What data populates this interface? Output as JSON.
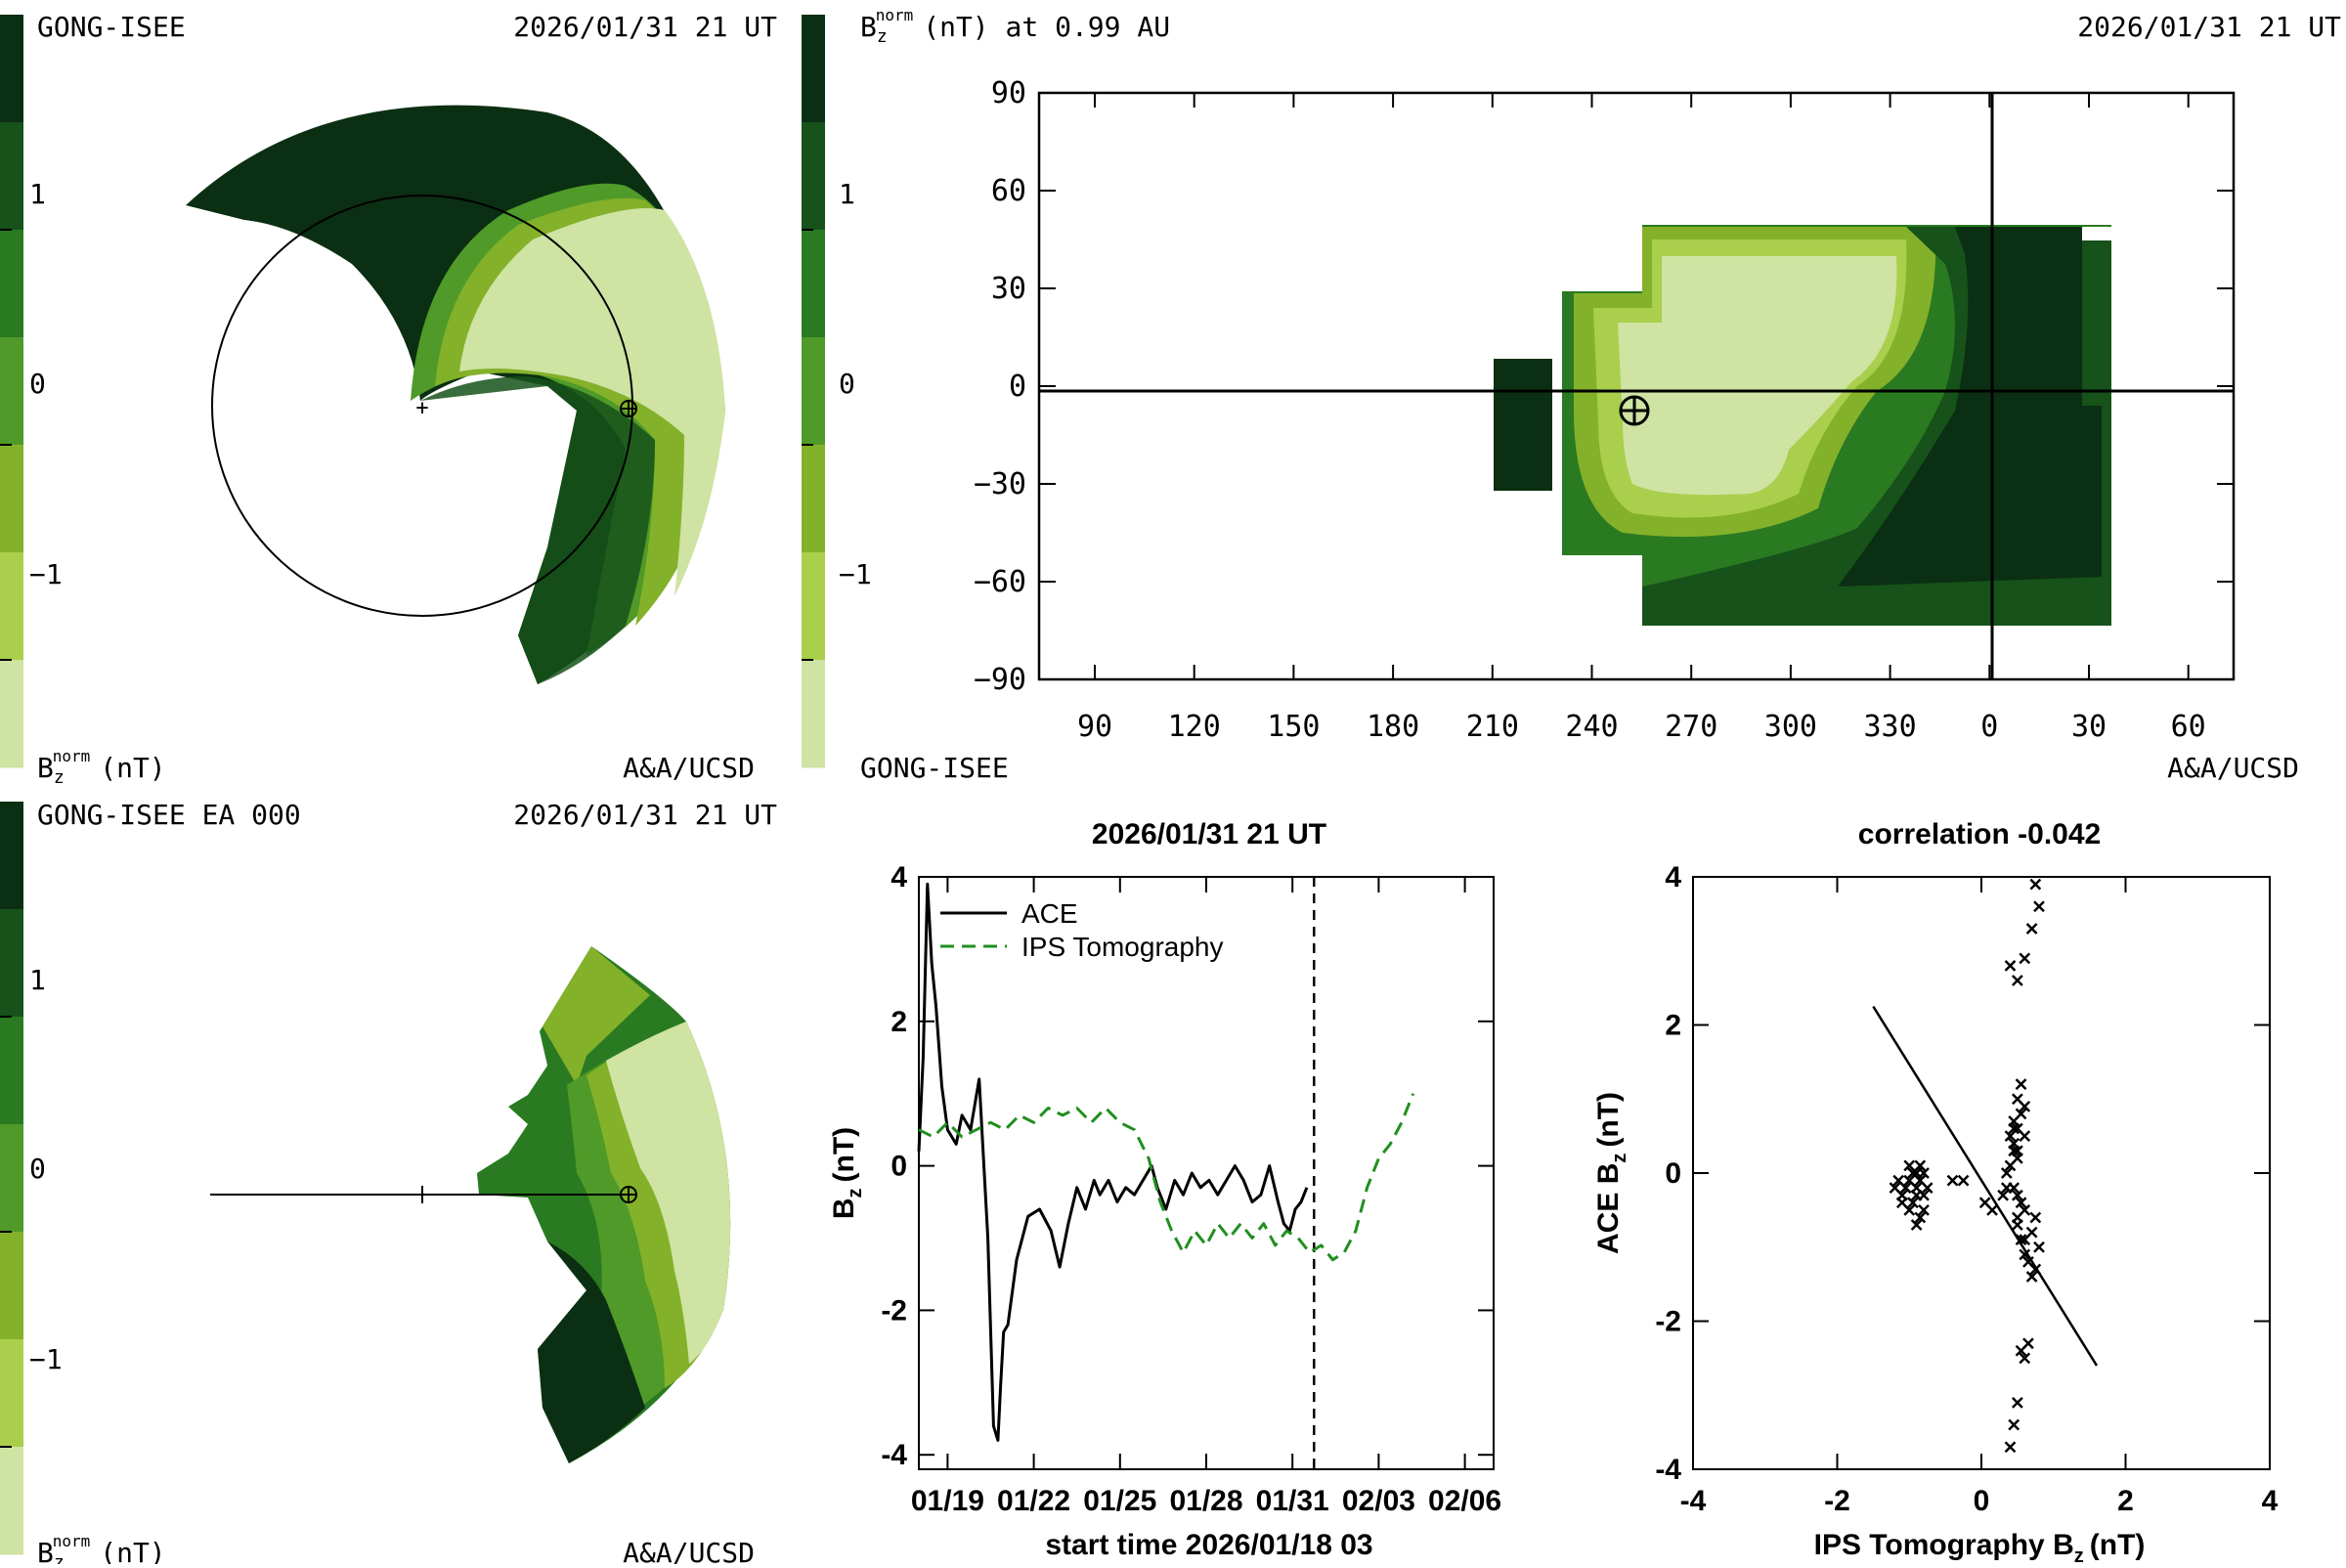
{
  "colors": {
    "scale": [
      "#cfe3a3",
      "#a9cf4c",
      "#84b12a",
      "#4f9a28",
      "#2a7a22",
      "#16521a",
      "#0b2f12"
    ],
    "ace": "#000000",
    "ips": "#1f8f1f"
  },
  "panel_tl": {
    "label_left": "GONG-ISEE",
    "label_right": "2026/01/31 21 UT",
    "footer_left_base": "B",
    "footer_left_sub": "z",
    "footer_left_sup": "norm",
    "footer_left_unit": "(nT)",
    "footer_right": "A&A/UCSD",
    "colorbar_ticks": [
      "1",
      "0",
      "−1"
    ]
  },
  "panel_bl": {
    "label_left": "GONG-ISEE EA 000",
    "label_right": "2026/01/31 21 UT",
    "footer_left_base": "B",
    "footer_left_sub": "z",
    "footer_left_sup": "norm",
    "footer_left_unit": "(nT)",
    "footer_right": "A&A/UCSD",
    "colorbar_ticks": [
      "1",
      "0",
      "−1"
    ]
  },
  "panel_map": {
    "title_base": "B",
    "title_sub": "z",
    "title_sup": "norm",
    "title_rest": "(nT) at 0.99 AU",
    "date": "2026/01/31 21 UT",
    "footer_left": "GONG-ISEE",
    "footer_right": "A&A/UCSD",
    "colorbar_ticks": [
      "1",
      "0",
      "−1"
    ]
  },
  "chart_data": [
    {
      "type": "line",
      "title": "2026/01/31 21 UT",
      "xlabel": "start time 2026/01/18 03",
      "ylabel_base": "B",
      "ylabel_sub": "z",
      "ylabel_unit": "(nT)",
      "xlim": [
        0,
        20
      ],
      "ylim": [
        -4.2,
        4
      ],
      "x_ticks": [
        1,
        4,
        7,
        10,
        13,
        16,
        19
      ],
      "x_tick_labels": [
        "01/19",
        "01/22",
        "01/25",
        "01/28",
        "01/31",
        "02/03",
        "02/06"
      ],
      "y_ticks": [
        4,
        2,
        0,
        -2,
        -4
      ],
      "y_tick_labels": [
        "4",
        "2",
        "0",
        "-2",
        "-4"
      ],
      "now_marker_x": 13.75,
      "series": [
        {
          "name": "ACE",
          "style": "solid",
          "x": [
            0,
            0.15,
            0.3,
            0.45,
            0.6,
            0.8,
            1.0,
            1.3,
            1.5,
            1.8,
            2.1,
            2.4,
            2.6,
            2.75,
            2.85,
            2.95,
            3.1,
            3.4,
            3.8,
            4.2,
            4.6,
            4.9,
            5.2,
            5.5,
            5.8,
            6.1,
            6.3,
            6.6,
            6.9,
            7.2,
            7.5,
            7.8,
            8.1,
            8.3,
            8.6,
            8.9,
            9.2,
            9.5,
            9.8,
            10.1,
            10.4,
            10.7,
            11.0,
            11.3,
            11.6,
            11.9,
            12.2,
            12.5,
            12.7,
            12.9,
            13.1,
            13.3,
            13.5
          ],
          "y": [
            0.2,
            1.5,
            3.9,
            2.8,
            2.2,
            1.1,
            0.5,
            0.3,
            0.7,
            0.5,
            1.2,
            -1.0,
            -3.6,
            -3.8,
            -3.0,
            -2.3,
            -2.2,
            -1.3,
            -0.7,
            -0.6,
            -0.9,
            -1.4,
            -0.8,
            -0.3,
            -0.6,
            -0.2,
            -0.4,
            -0.2,
            -0.5,
            -0.3,
            -0.4,
            -0.2,
            0.0,
            -0.3,
            -0.6,
            -0.2,
            -0.4,
            -0.1,
            -0.3,
            -0.2,
            -0.4,
            -0.2,
            0.0,
            -0.2,
            -0.5,
            -0.4,
            0.0,
            -0.5,
            -0.8,
            -0.9,
            -0.6,
            -0.5,
            -0.3
          ]
        },
        {
          "name": "IPS Tomography",
          "style": "dashed",
          "x": [
            0,
            0.5,
            1.0,
            1.5,
            2.0,
            2.5,
            3.0,
            3.5,
            4.0,
            4.5,
            5.0,
            5.5,
            6.0,
            6.5,
            7.0,
            7.5,
            8.0,
            8.4,
            8.8,
            9.2,
            9.6,
            10.0,
            10.4,
            10.8,
            11.2,
            11.6,
            12.0,
            12.4,
            12.8,
            13.2,
            13.6,
            14.0,
            14.4,
            14.8,
            15.2,
            15.6,
            16.0,
            16.4,
            16.8,
            17.2
          ],
          "y": [
            0.5,
            0.4,
            0.6,
            0.4,
            0.5,
            0.6,
            0.5,
            0.7,
            0.6,
            0.8,
            0.7,
            0.8,
            0.6,
            0.8,
            0.6,
            0.5,
            0.1,
            -0.5,
            -0.9,
            -1.2,
            -0.9,
            -1.1,
            -0.8,
            -1.0,
            -0.8,
            -1.0,
            -0.8,
            -1.1,
            -0.9,
            -1.0,
            -1.2,
            -1.1,
            -1.3,
            -1.2,
            -0.9,
            -0.3,
            0.1,
            0.3,
            0.6,
            1.0
          ]
        }
      ]
    },
    {
      "type": "scatter",
      "title": "correlation -0.042",
      "xlabel_base": "IPS Tomography B",
      "xlabel_sub": "z",
      "xlabel_unit": "(nT)",
      "ylabel_base": "ACE B",
      "ylabel_sub": "z",
      "ylabel_unit": "(nT)",
      "xlim": [
        -4,
        4
      ],
      "ylim": [
        -4,
        4
      ],
      "x_ticks": [
        -4,
        -2,
        0,
        2,
        4
      ],
      "x_tick_labels": [
        "-4",
        "-2",
        "0",
        "2",
        "4"
      ],
      "y_ticks": [
        4,
        2,
        0,
        -2,
        -4
      ],
      "y_tick_labels": [
        "4",
        "2",
        "0",
        "-2",
        "-4"
      ],
      "fit_line": {
        "x": [
          -1.5,
          1.6
        ],
        "y": [
          2.25,
          -2.6
        ]
      },
      "points": {
        "x": [
          -1.2,
          -1.15,
          -1.1,
          -1.05,
          -1.0,
          -0.95,
          -0.9,
          -0.85,
          -0.8,
          -1.1,
          -1.0,
          -0.9,
          -0.85,
          -0.95,
          -1.05,
          -0.9,
          -0.8,
          -0.75,
          -0.85,
          -1.0,
          -0.9,
          -0.8,
          -0.4,
          -0.25,
          0.05,
          0.15,
          0.3,
          0.35,
          0.4,
          0.45,
          0.5,
          0.55,
          0.45,
          0.5,
          0.6,
          0.4,
          0.5,
          0.55,
          0.6,
          0.45,
          0.35,
          0.5,
          0.6,
          0.7,
          0.75,
          0.8,
          0.65,
          0.7,
          0.75,
          0.6,
          0.5,
          0.55,
          0.45,
          0.4,
          0.5,
          0.6,
          0.7,
          0.8,
          0.75,
          0.65,
          0.6,
          0.55,
          0.5,
          0.45,
          0.4,
          0.5,
          0.55,
          0.6,
          0.5,
          0.45
        ],
        "y": [
          -0.2,
          -0.1,
          -0.3,
          -0.2,
          -0.1,
          0.0,
          -0.2,
          -0.1,
          -0.3,
          -0.4,
          -0.5,
          -0.3,
          -0.6,
          -0.4,
          -0.2,
          -0.7,
          -0.5,
          -0.2,
          0.1,
          0.1,
          0.0,
          0.0,
          -0.1,
          -0.1,
          -0.4,
          -0.5,
          -0.3,
          -0.2,
          0.5,
          0.7,
          0.6,
          0.8,
          0.4,
          0.2,
          0.5,
          0.1,
          1.0,
          1.2,
          0.9,
          0.3,
          0.0,
          -0.3,
          -0.5,
          -0.8,
          -0.6,
          -1.0,
          -1.2,
          -1.4,
          -1.3,
          -0.9,
          -0.7,
          -0.4,
          -0.2,
          2.8,
          2.6,
          2.9,
          3.3,
          3.6,
          3.9,
          -2.3,
          -2.5,
          -2.4,
          -3.1,
          -3.4,
          -3.7,
          -0.6,
          -0.9,
          -1.1,
          0.3,
          0.6
        ]
      }
    }
  ]
}
